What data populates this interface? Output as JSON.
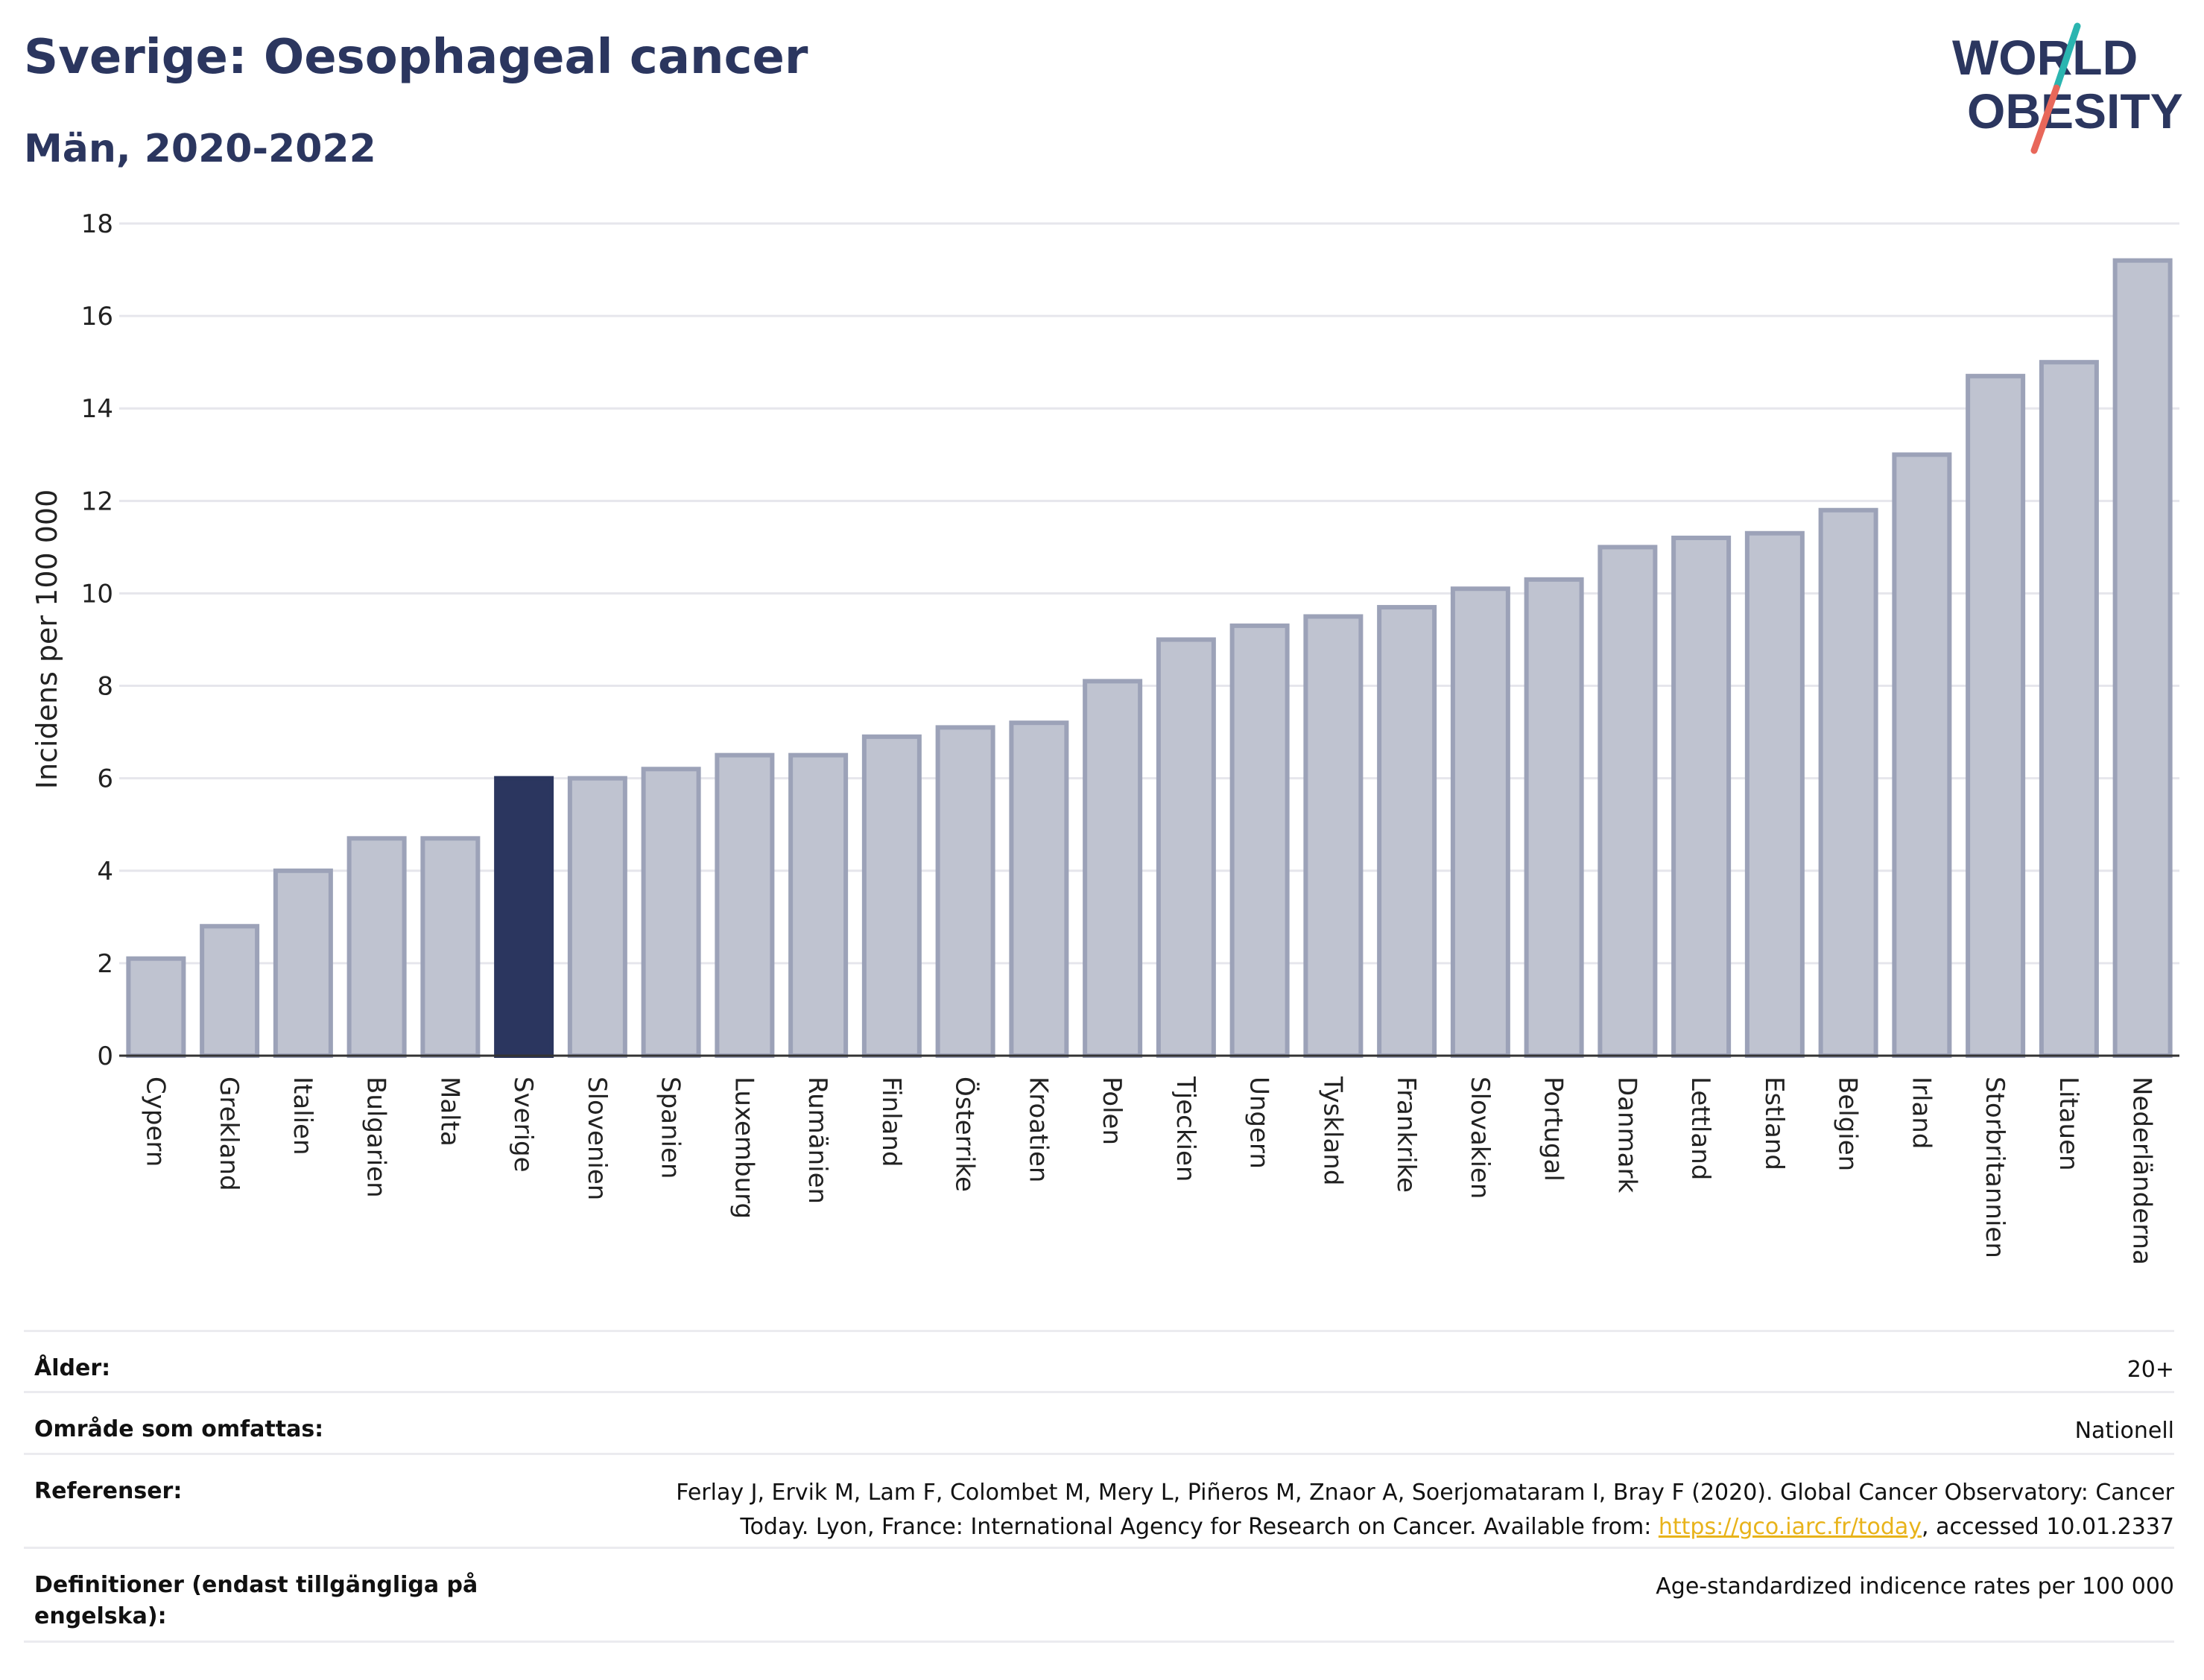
{
  "header": {
    "title": "Sverige: Oesophageal cancer",
    "subtitle": "Män, 2020-2022"
  },
  "logo": {
    "line1": "WORLD",
    "line2": "OBESITY",
    "colors": {
      "text": "#2b365f",
      "slash_top": "#2bb5b0",
      "slash_bottom": "#e8675a"
    }
  },
  "chart_data": {
    "type": "bar",
    "ylabel": "Incidens per 100 000",
    "ylim": [
      0,
      18
    ],
    "yticks": [
      0,
      2,
      4,
      6,
      8,
      10,
      12,
      14,
      16,
      18
    ],
    "grid": true,
    "highlight": "Sverige",
    "colors": {
      "bar": "#bfc3d0",
      "bar_border": "#9ca2b8",
      "highlight": "#2b365f",
      "axis": "#333333",
      "grid": "#e6e6ec"
    },
    "categories": [
      "Cypern",
      "Grekland",
      "Italien",
      "Bulgarien",
      "Malta",
      "Sverige",
      "Slovenien",
      "Spanien",
      "Luxemburg",
      "Rumänien",
      "Finland",
      "Österrike",
      "Kroatien",
      "Polen",
      "Tjeckien",
      "Ungern",
      "Tyskland",
      "Frankrike",
      "Slovakien",
      "Portugal",
      "Danmark",
      "Lettland",
      "Estland",
      "Belgien",
      "Irland",
      "Storbritannien",
      "Litauen",
      "Nederländerna"
    ],
    "values": [
      2.1,
      2.8,
      4.0,
      4.7,
      4.7,
      6.0,
      6.0,
      6.2,
      6.5,
      6.5,
      6.9,
      7.1,
      7.2,
      8.1,
      9.0,
      9.3,
      9.5,
      9.7,
      10.1,
      10.3,
      11.0,
      11.2,
      11.3,
      11.8,
      13.0,
      14.7,
      15.0,
      17.2
    ]
  },
  "meta": {
    "age_label": "Ålder:",
    "age_value": "20+",
    "area_label": "Område som omfattas:",
    "area_value": "Nationell",
    "ref_label": "Referenser:",
    "ref_line1": "Ferlay J, Ervik M, Lam F, Colombet M, Mery L, Piñeros M, Znaor A, Soerjomataram I, Bray F (2020). Global Cancer Observatory: Cancer",
    "ref_line2_pre": "Today. Lyon, France: International Agency for Research on Cancer. Available from: ",
    "ref_link": "https://gco.iarc.fr/today",
    "ref_line2_post": ", accessed 10.01.2337",
    "def_label": "Definitioner (endast tillgängliga på engelska):",
    "def_value": "Age-standardized indicence rates per 100 000"
  }
}
